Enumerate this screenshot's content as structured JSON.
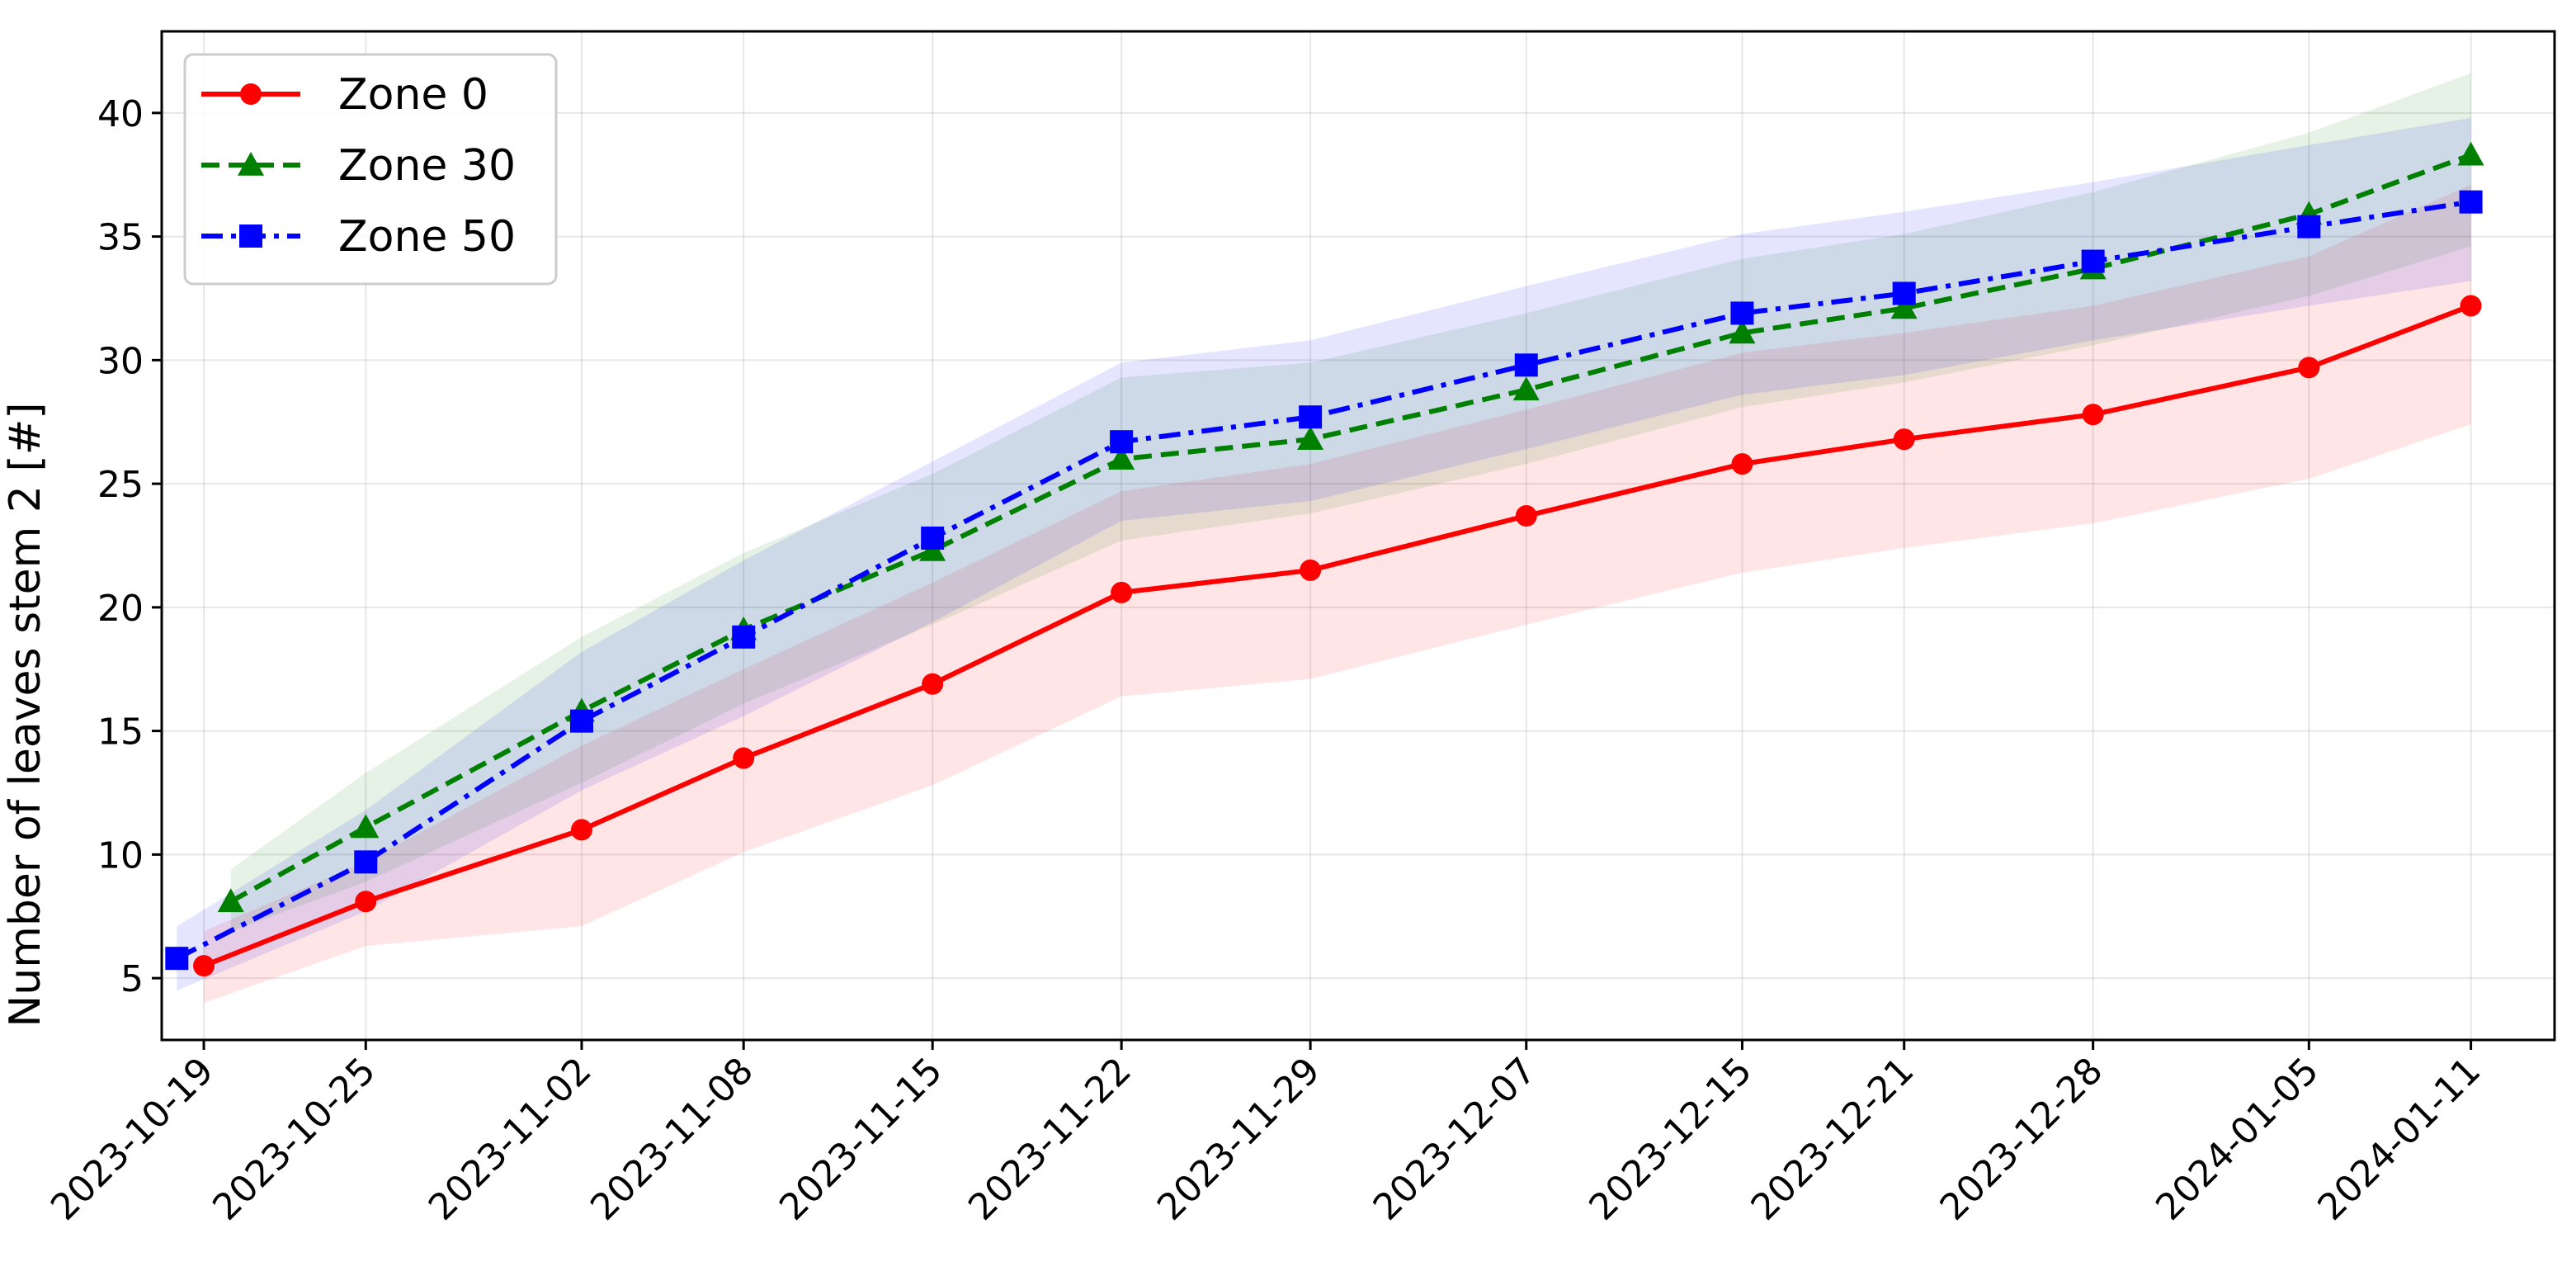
{
  "chart_data": {
    "type": "line",
    "title": "",
    "xlabel": "",
    "ylabel": "Number of leaves stem 2 [#]",
    "x_axis": {
      "type": "categorical",
      "tick_labels": [
        "2023-10-19",
        "2023-10-25",
        "2023-11-02",
        "2023-11-08",
        "2023-11-15",
        "2023-11-22",
        "2023-11-29",
        "2023-12-07",
        "2023-12-15",
        "2023-12-21",
        "2023-12-28",
        "2024-01-05",
        "2024-01-11"
      ]
    },
    "ylim": [
      2.5,
      43.3
    ],
    "yticks": [
      5,
      10,
      15,
      20,
      25,
      30,
      35,
      40
    ],
    "grid": true,
    "legend": "top-left",
    "series": [
      {
        "name": "Zone 0",
        "color": "#ff0000",
        "marker": "circle",
        "dash": "solid",
        "x": [
          "2023-10-19",
          "2023-10-25",
          "2023-11-02",
          "2023-11-08",
          "2023-11-15",
          "2023-11-22",
          "2023-11-29",
          "2023-12-07",
          "2023-12-15",
          "2023-12-21",
          "2023-12-28",
          "2024-01-05",
          "2024-01-11"
        ],
        "y": [
          5.5,
          8.1,
          11.0,
          13.9,
          16.9,
          20.6,
          21.5,
          23.7,
          25.8,
          26.8,
          27.8,
          29.7,
          32.2
        ],
        "lower": [
          4.0,
          6.3,
          7.1,
          10.1,
          12.8,
          16.4,
          17.1,
          19.3,
          21.4,
          22.4,
          23.4,
          25.2,
          27.4
        ],
        "upper": [
          6.9,
          9.7,
          14.4,
          17.5,
          21.0,
          24.7,
          25.8,
          28.0,
          30.3,
          31.1,
          32.2,
          34.2,
          37.1
        ]
      },
      {
        "name": "Zone 30",
        "color": "#008000",
        "marker": "triangle",
        "dash": "dashed",
        "x": [
          "2023-10-20",
          "2023-10-25",
          "2023-11-02",
          "2023-11-08",
          "2023-11-15",
          "2023-11-22",
          "2023-11-29",
          "2023-12-07",
          "2023-12-15",
          "2023-12-21",
          "2023-12-28",
          "2024-01-05",
          "2024-01-11"
        ],
        "y": [
          8.1,
          11.1,
          15.8,
          19.1,
          22.3,
          26.0,
          26.8,
          28.8,
          31.1,
          32.1,
          33.7,
          35.9,
          38.3
        ],
        "lower": [
          6.9,
          8.9,
          12.9,
          16.1,
          19.3,
          22.7,
          23.8,
          25.8,
          28.1,
          29.1,
          30.6,
          32.6,
          34.6
        ],
        "upper": [
          9.4,
          13.3,
          18.8,
          22.2,
          25.4,
          29.3,
          29.9,
          31.9,
          34.1,
          35.1,
          36.8,
          39.2,
          41.6
        ]
      },
      {
        "name": "Zone 50",
        "color": "#0000ff",
        "marker": "square",
        "dash": "dashdot",
        "x": [
          "2023-10-18",
          "2023-10-25",
          "2023-11-02",
          "2023-11-08",
          "2023-11-15",
          "2023-11-22",
          "2023-11-29",
          "2023-12-07",
          "2023-12-15",
          "2023-12-21",
          "2023-12-28",
          "2024-01-05",
          "2024-01-11"
        ],
        "y": [
          5.8,
          9.7,
          15.4,
          18.8,
          22.8,
          26.7,
          27.7,
          29.8,
          31.9,
          32.7,
          34.0,
          35.4,
          36.4
        ],
        "lower": [
          4.5,
          7.7,
          12.6,
          15.6,
          19.4,
          23.5,
          24.3,
          26.4,
          28.6,
          29.4,
          30.8,
          32.2,
          33.2
        ],
        "upper": [
          7.1,
          11.8,
          18.2,
          21.9,
          25.9,
          29.9,
          30.8,
          33.0,
          35.1,
          36.0,
          37.2,
          38.7,
          39.8
        ]
      }
    ]
  }
}
